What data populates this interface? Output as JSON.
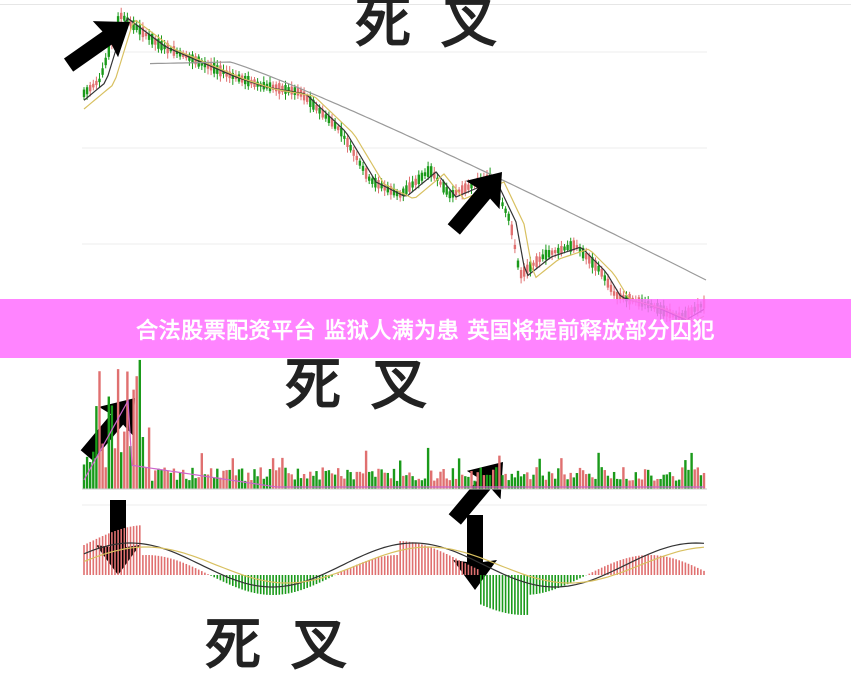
{
  "banner": {
    "title": "合法股票配资平台 监狱人满为患 英国将提前释放部分囚犯"
  },
  "annotations": {
    "price_label": "死叉",
    "volume_label": "死叉",
    "macd_label": "死叉"
  },
  "colors": {
    "banner": "#ff6eff",
    "up": "#e07070",
    "down": "#1a9a1a",
    "ma_short": "#d8c060",
    "ma_long": "#999999",
    "volume_ma": "#cc66cc",
    "arrow": "#000000"
  }
}
